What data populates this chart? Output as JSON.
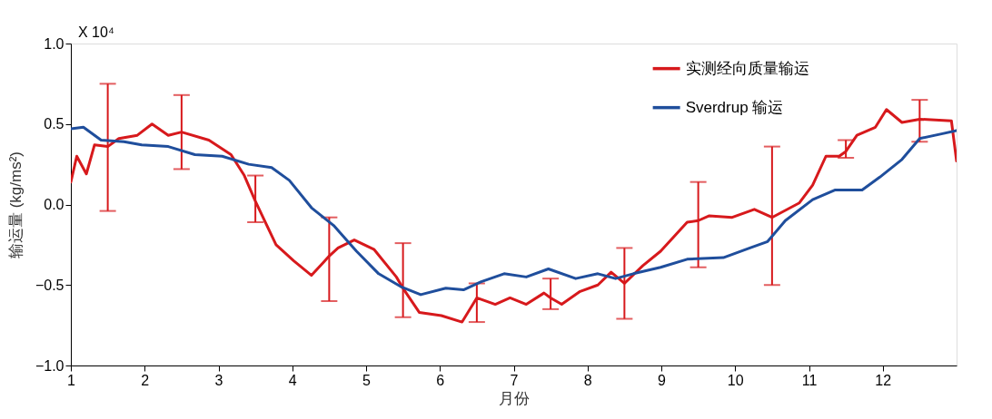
{
  "chart_data": {
    "type": "line",
    "xlabel": "月份",
    "ylabel": "输运量 (kg/ms²)",
    "annotations": [
      "X 10⁴"
    ],
    "xlim": [
      1,
      13
    ],
    "xticks": [
      1,
      2,
      3,
      4,
      5,
      6,
      7,
      8,
      9,
      10,
      11,
      12
    ],
    "ylim": [
      -1,
      1
    ],
    "yticks": [
      {
        "value": -1,
        "label": "−1.0"
      },
      {
        "value": -0.5,
        "label": "−0.5"
      },
      {
        "value": 0,
        "label": "0.0"
      },
      {
        "value": 0.5,
        "label": "0.5"
      },
      {
        "value": 1,
        "label": "1.0"
      }
    ],
    "grid": false,
    "legend": "top right",
    "marker": "none",
    "line_style": "solid",
    "series": [
      {
        "name": "实测经向质量输运",
        "color": "#d7191c",
        "x": [
          1.0,
          1.08,
          1.21,
          1.32,
          1.5,
          1.65,
          1.9,
          2.1,
          2.32,
          2.5,
          2.87,
          3.17,
          3.35,
          3.5,
          3.78,
          4.02,
          4.26,
          4.42,
          4.5,
          4.62,
          4.84,
          5.11,
          5.41,
          5.5,
          5.72,
          6.02,
          6.3,
          6.5,
          6.75,
          6.95,
          7.17,
          7.41,
          7.5,
          7.65,
          7.9,
          8.14,
          8.32,
          8.5,
          8.75,
          8.99,
          9.35,
          9.5,
          9.65,
          9.96,
          10.26,
          10.5,
          10.87,
          11.05,
          11.23,
          11.41,
          11.5,
          11.65,
          11.9,
          12.05,
          12.26,
          12.5,
          12.93,
          13.0
        ],
        "values": [
          0.14,
          0.3,
          0.19,
          0.37,
          0.36,
          0.41,
          0.43,
          0.5,
          0.43,
          0.45,
          0.4,
          0.31,
          0.18,
          0.02,
          -0.25,
          -0.35,
          -0.44,
          -0.36,
          -0.32,
          -0.27,
          -0.22,
          -0.28,
          -0.45,
          -0.52,
          -0.67,
          -0.69,
          -0.73,
          -0.58,
          -0.62,
          -0.58,
          -0.62,
          -0.55,
          -0.58,
          -0.62,
          -0.54,
          -0.5,
          -0.42,
          -0.49,
          -0.38,
          -0.29,
          -0.11,
          -0.1,
          -0.07,
          -0.08,
          -0.03,
          -0.08,
          0.01,
          0.12,
          0.3,
          0.3,
          0.33,
          0.43,
          0.48,
          0.59,
          0.51,
          0.53,
          0.52,
          0.27
        ],
        "errors": [
          null,
          null,
          null,
          null,
          [
            -0.04,
            0.75
          ],
          null,
          null,
          null,
          null,
          [
            0.22,
            0.68
          ],
          null,
          null,
          null,
          [
            -0.11,
            0.18
          ],
          null,
          null,
          null,
          null,
          [
            -0.6,
            -0.08
          ],
          null,
          null,
          null,
          null,
          [
            -0.7,
            -0.24
          ],
          null,
          null,
          null,
          [
            -0.73,
            -0.49
          ],
          null,
          null,
          null,
          null,
          [
            -0.65,
            -0.46
          ],
          null,
          null,
          null,
          null,
          [
            -0.71,
            -0.27
          ],
          null,
          null,
          null,
          [
            -0.39,
            0.14
          ],
          null,
          null,
          null,
          [
            -0.5,
            0.36
          ],
          null,
          null,
          null,
          null,
          [
            0.29,
            0.4
          ],
          null,
          null,
          null,
          null,
          [
            0.39,
            0.65
          ],
          null,
          null
        ]
      },
      {
        "name": "Sverdrup 输运",
        "color": "#1f4e9c",
        "x": [
          1.0,
          1.17,
          1.41,
          1.72,
          1.96,
          2.32,
          2.68,
          3.05,
          3.41,
          3.72,
          3.96,
          4.26,
          4.56,
          4.87,
          5.17,
          5.47,
          5.74,
          6.08,
          6.32,
          6.56,
          6.87,
          7.17,
          7.47,
          7.84,
          8.14,
          8.38,
          8.62,
          8.99,
          9.35,
          9.84,
          10.2,
          10.44,
          10.68,
          11.05,
          11.35,
          11.72,
          11.96,
          12.26,
          12.5,
          12.81,
          13.0
        ],
        "values": [
          0.47,
          0.48,
          0.4,
          0.39,
          0.37,
          0.36,
          0.31,
          0.3,
          0.25,
          0.23,
          0.15,
          -0.02,
          -0.13,
          -0.29,
          -0.43,
          -0.51,
          -0.56,
          -0.52,
          -0.53,
          -0.48,
          -0.43,
          -0.45,
          -0.4,
          -0.46,
          -0.43,
          -0.46,
          -0.43,
          -0.39,
          -0.34,
          -0.33,
          -0.27,
          -0.23,
          -0.1,
          0.03,
          0.09,
          0.09,
          0.17,
          0.28,
          0.41,
          0.44,
          0.46
        ]
      }
    ]
  }
}
